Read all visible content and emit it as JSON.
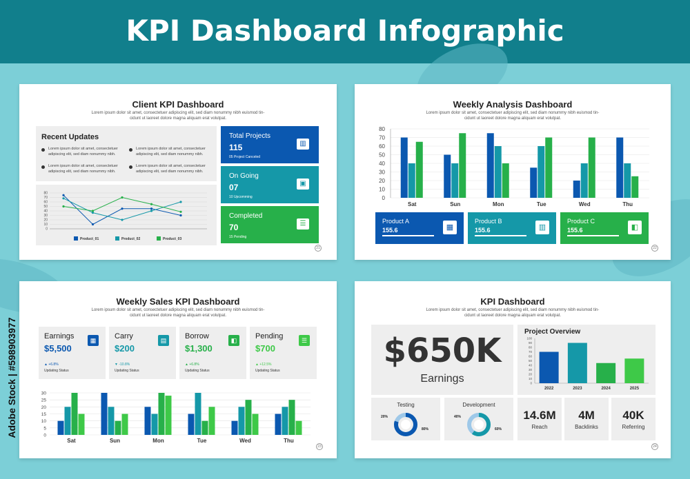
{
  "banner_title": "KPI Dashboard Infographic",
  "side_text": "Adobe Stock | #598903977",
  "lorem": "Lorem ipsum dolor sit amet, consectetuer adipiscing elit, sed diam nonummy nibh euismod tin-",
  "lorem2": "cidunt ut laoreet dolore magna aliquam erat volutpat.",
  "colors": {
    "blue": "#0b58b0",
    "teal": "#1598a8",
    "green": "#27b04a",
    "lgreen": "#3ec948",
    "gray": "#eeeeee"
  },
  "panel1": {
    "title": "Client KPI Dashboard",
    "recent_title": "Recent Updates",
    "update_lines": [
      "Lorem ipsum dolor sit amet, consectetuer",
      "adipiscing elit, sed diam nonummy nibh."
    ],
    "stats": [
      {
        "title": "Total Projects",
        "value": "115",
        "note": "05 Project Canceled",
        "color": "#0b58b0",
        "icon": "chart-icon"
      },
      {
        "title": "On Going",
        "value": "07",
        "note": "10 Upcomming",
        "color": "#1598a8",
        "icon": "money-icon"
      },
      {
        "title": "Completed",
        "value": "70",
        "note": "15 Pending",
        "color": "#27b04a",
        "icon": "document-icon"
      }
    ],
    "page": "21",
    "chart_data": {
      "type": "line",
      "x": [
        "1",
        "2",
        "3",
        "4",
        "5"
      ],
      "y_ticks": [
        "0",
        "10",
        "20",
        "30",
        "40",
        "50",
        "60",
        "70",
        "80"
      ],
      "ylim": [
        0,
        80
      ],
      "series": [
        {
          "name": "Product_01",
          "color": "#0b58b0",
          "values": [
            75,
            10,
            45,
            45,
            30
          ]
        },
        {
          "name": "Product_02",
          "color": "#1598a8",
          "values": [
            68,
            36,
            20,
            40,
            60
          ]
        },
        {
          "name": "Product_03",
          "color": "#27b04a",
          "values": [
            50,
            40,
            70,
            55,
            38
          ]
        }
      ]
    }
  },
  "panel2": {
    "title": "Weekly Analysis Dashboard",
    "page": "22",
    "products": [
      {
        "title": "Product A",
        "value": "155.6",
        "color": "#0b58b0",
        "icon": "box-icon"
      },
      {
        "title": "Product B",
        "value": "155.6",
        "color": "#1598a8",
        "icon": "chart-icon"
      },
      {
        "title": "Product C",
        "value": "155.6",
        "color": "#27b04a",
        "icon": "wallet-icon"
      }
    ],
    "chart_data": {
      "type": "bar",
      "categories": [
        "Sat",
        "Sun",
        "Mon",
        "Tue",
        "Wed",
        "Thu"
      ],
      "y_ticks": [
        "0",
        "10",
        "20",
        "30",
        "40",
        "50",
        "60",
        "70",
        "80"
      ],
      "ylim": [
        0,
        80
      ],
      "series": [
        {
          "color": "#0b58b0",
          "values": [
            70,
            50,
            75,
            35,
            20,
            70
          ]
        },
        {
          "color": "#1598a8",
          "values": [
            40,
            40,
            60,
            60,
            40,
            40
          ]
        },
        {
          "color": "#27b04a",
          "values": [
            65,
            75,
            40,
            70,
            70,
            25
          ]
        }
      ]
    }
  },
  "panel3": {
    "title": "Weekly Sales KPI Dashboard",
    "page": "23",
    "stats": [
      {
        "title": "Earnings",
        "value": "$5,500",
        "change": "▲ +6.8%",
        "status": "Updating Status",
        "color": "#0b58b0",
        "change_color": "#0b58b0",
        "icon": "box-icon"
      },
      {
        "title": "Carry",
        "value": "$200",
        "change": "▼ -10.8%",
        "status": "Updating Status",
        "color": "#1598a8",
        "change_color": "#1598a8",
        "icon": "building-icon"
      },
      {
        "title": "Borrow",
        "value": "$1,300",
        "change": "▲ +6.8%",
        "status": "Updating Status",
        "color": "#27b04a",
        "change_color": "#27b04a",
        "icon": "wallet-icon"
      },
      {
        "title": "Pending",
        "value": "$700",
        "change": "▲ +12.5%",
        "status": "Updating Status",
        "color": "#3ec948",
        "change_color": "#3ec948",
        "icon": "document-icon"
      }
    ],
    "chart_data": {
      "type": "bar",
      "categories": [
        "Sat",
        "Sun",
        "Mon",
        "Tue",
        "Wed",
        "Thu"
      ],
      "y_ticks": [
        "0",
        "5",
        "10",
        "15",
        "20",
        "25",
        "30"
      ],
      "ylim": [
        0,
        30
      ],
      "series": [
        {
          "color": "#0b58b0",
          "values": [
            10,
            30,
            20,
            15,
            10,
            15
          ]
        },
        {
          "color": "#1598a8",
          "values": [
            20,
            20,
            15,
            30,
            20,
            20
          ]
        },
        {
          "color": "#27b04a",
          "values": [
            30,
            10,
            30,
            10,
            25,
            25
          ]
        },
        {
          "color": "#3ec948",
          "values": [
            15,
            15,
            28,
            20,
            15,
            10
          ]
        }
      ]
    }
  },
  "panel4": {
    "title": "KPI Dashboard",
    "page": "24",
    "big_value": "$650K",
    "big_label": "Earnings",
    "overview_title": "Project Overview",
    "donuts": [
      {
        "title": "Testing",
        "left": "20%",
        "right": "80%",
        "fraction": 0.8,
        "color": "#0b58b0"
      },
      {
        "title": "Development",
        "left": "40%",
        "right": "60%",
        "fraction": 0.6,
        "color": "#1598a8"
      }
    ],
    "metrics": [
      {
        "value": "14.6M",
        "label": "Reach"
      },
      {
        "value": "4M",
        "label": "Backlinks"
      },
      {
        "value": "40K",
        "label": "Referring"
      }
    ],
    "chart_data": {
      "type": "bar",
      "categories": [
        "2022",
        "2023",
        "2024",
        "2025"
      ],
      "values": [
        70,
        90,
        45,
        55
      ],
      "colors": [
        "#0b58b0",
        "#1598a8",
        "#27b04a",
        "#3ec948"
      ],
      "y_ticks": [
        "0",
        "10",
        "20",
        "30",
        "40",
        "50",
        "60",
        "70",
        "80",
        "90",
        "100"
      ],
      "ylim": [
        0,
        100
      ]
    }
  }
}
